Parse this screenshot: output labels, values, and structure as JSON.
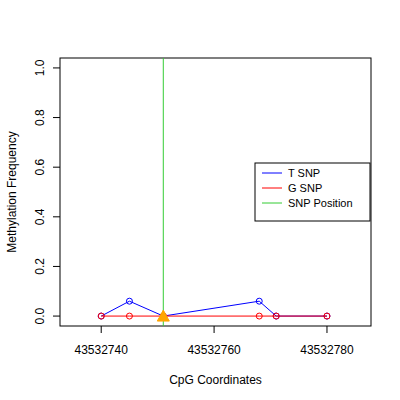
{
  "chart_data": {
    "type": "line",
    "x_label": "CpG Coordinates",
    "y_label": "Methylation Frequency",
    "xlim": [
      43532732.7,
      43532787.8
    ],
    "ylim": [
      -0.04,
      1.04
    ],
    "xticks": [
      43532740,
      43532760,
      43532780
    ],
    "yticks": [
      {
        "value": 0,
        "label": "0.0"
      },
      0.2,
      0.4,
      0.6,
      0.8,
      {
        "value": 1,
        "label": "1.0"
      }
    ],
    "legend": "right",
    "grid": false,
    "series": [
      {
        "name": "T SNP",
        "color": "#0000ff",
        "marker": "circle",
        "line_style": "solid",
        "x": [
          43532740,
          43532745,
          43532751,
          43532768,
          43532771,
          43532780
        ],
        "values": [
          0,
          0.06,
          0,
          0.06,
          0,
          0
        ]
      },
      {
        "name": "G SNP",
        "color": "#ff0000",
        "marker": "circle",
        "line_style": "solid",
        "x": [
          43532740,
          43532745,
          43532751,
          43532768,
          43532771,
          43532780
        ],
        "values": [
          0,
          0,
          0,
          0,
          0,
          0
        ]
      },
      {
        "name": "SNP Position",
        "type": "vline",
        "color": "#33cc33",
        "marker": "triangle",
        "colors": [
          "#ffa500"
        ],
        "x": [
          43532751
        ],
        "values": [
          0
        ]
      }
    ]
  }
}
